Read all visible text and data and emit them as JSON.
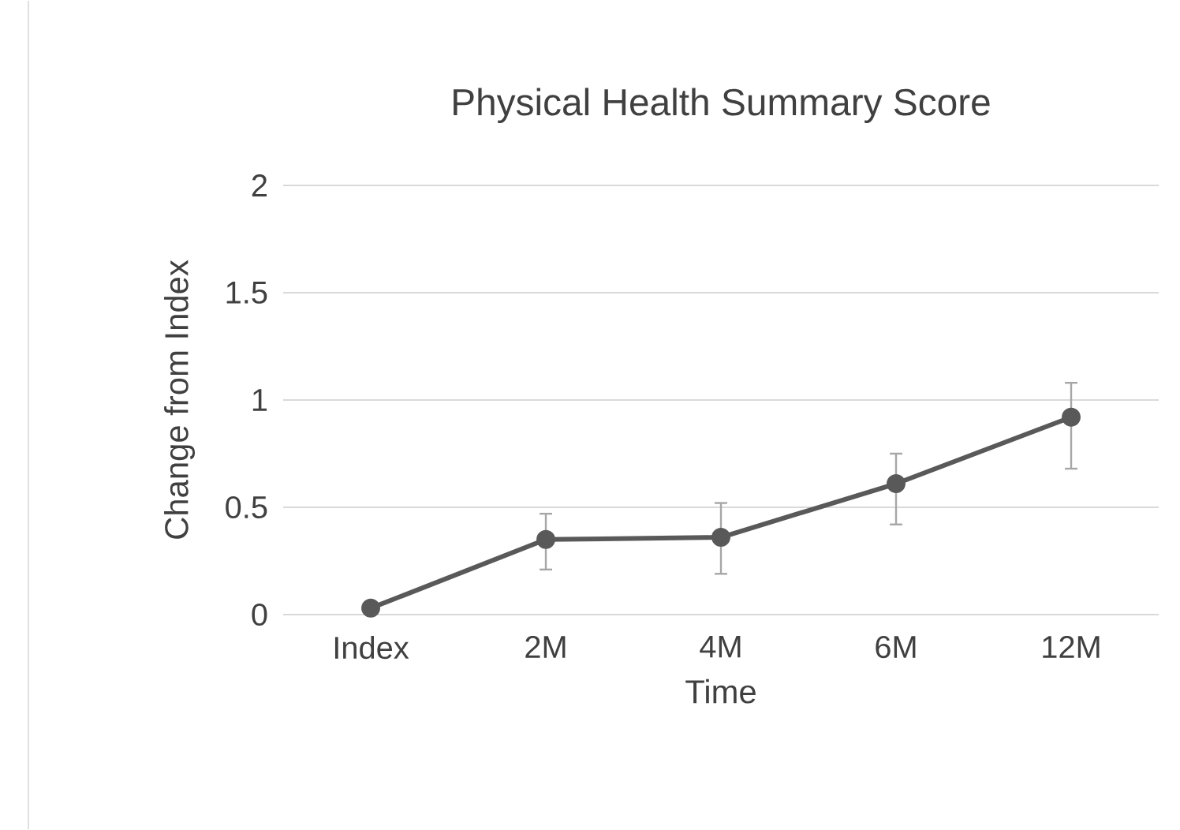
{
  "chart_data": {
    "type": "line",
    "title": "Physical Health Summary Score",
    "xlabel": "Time",
    "ylabel": "Change from Index",
    "categories": [
      "Index",
      "2M",
      "4M",
      "6M",
      "12M"
    ],
    "series": [
      {
        "color": "#595959",
        "values": [
          0.03,
          0.35,
          0.36,
          0.61,
          0.92
        ],
        "errors": [
          null,
          [
            0.21,
            0.47
          ],
          [
            0.19,
            0.52
          ],
          [
            0.42,
            0.75
          ],
          [
            0.68,
            1.08
          ]
        ]
      }
    ],
    "ylim": [
      0,
      2
    ],
    "yticks": [
      0,
      0.5,
      1,
      1.5,
      2
    ],
    "grid": "y",
    "marker": "circle",
    "line_style": "solid"
  }
}
